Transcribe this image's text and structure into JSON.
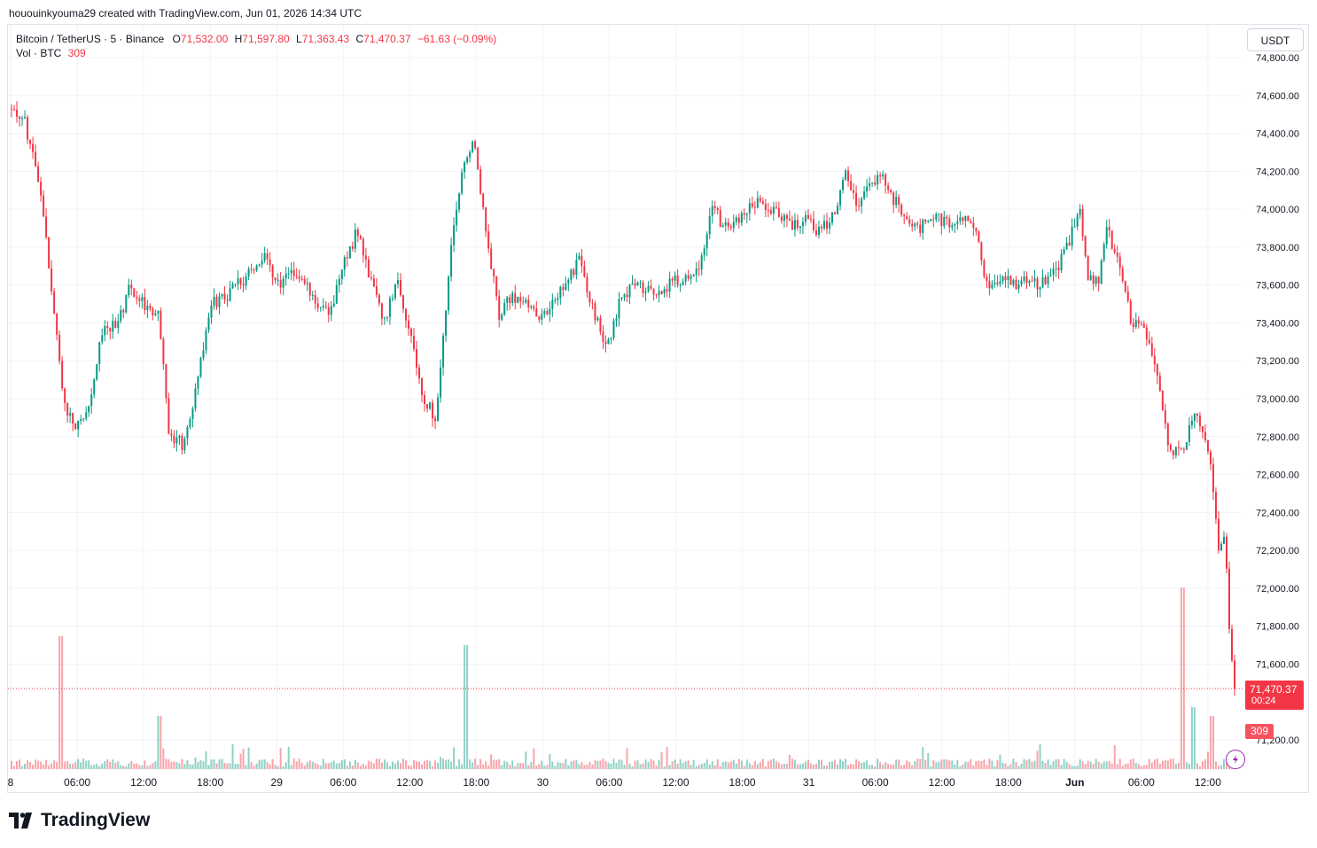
{
  "attribution": "hououinkyouma29 created with TradingView.com, Jun 01, 2026 14:34 UTC",
  "legend": {
    "symbol": "Bitcoin / TetherUS · 5 · Binance",
    "o_label": "O",
    "o_value": "71,532.00",
    "h_label": "H",
    "h_value": "71,597.80",
    "l_label": "L",
    "l_value": "71,363.43",
    "c_label": "C",
    "c_value": "71,470.37",
    "change": "−61.63 (−0.09%)",
    "vol_label": "Vol · BTC",
    "vol_value": "309"
  },
  "currency_button": "USDT",
  "price_tag": {
    "price": "71,470.37",
    "countdown": "00:24"
  },
  "volume_tag": "309",
  "brand": "TradingView",
  "icons": [
    "tradingview-logo-icon",
    "flash-icon"
  ],
  "colors": {
    "up": "#089981",
    "down": "#f23645",
    "grid": "#f0f3fa",
    "text": "#131722"
  },
  "chart_data": {
    "type": "candlestick",
    "timeframe": "5",
    "y_axis": {
      "range": [
        71000,
        74900
      ],
      "ticks": [
        "74,800.00",
        "74,600.00",
        "74,400.00",
        "74,200.00",
        "74,000.00",
        "73,800.00",
        "73,600.00",
        "73,400.00",
        "73,200.00",
        "73,000.00",
        "72,800.00",
        "72,600.00",
        "72,400.00",
        "72,200.00",
        "72,000.00",
        "71,800.00",
        "71,600.00",
        "71,200.00"
      ]
    },
    "x_axis": {
      "ticks": [
        "8",
        "06:00",
        "12:00",
        "18:00",
        "29",
        "06:00",
        "12:00",
        "18:00",
        "30",
        "06:00",
        "12:00",
        "18:00",
        "31",
        "06:00",
        "12:00",
        "18:00",
        "Jun",
        "06:00",
        "12:00"
      ],
      "bold_ticks": [
        "Jun"
      ]
    },
    "price_path": [
      [
        0,
        74530
      ],
      [
        1.2,
        74480
      ],
      [
        2.5,
        74150
      ],
      [
        3.5,
        73550
      ],
      [
        4.5,
        72980
      ],
      [
        5.5,
        72830
      ],
      [
        6.6,
        72990
      ],
      [
        7.7,
        73390
      ],
      [
        8.8,
        73380
      ],
      [
        9.9,
        73600
      ],
      [
        11.0,
        73500
      ],
      [
        12.2,
        73440
      ],
      [
        13.1,
        72800
      ],
      [
        14.2,
        72760
      ],
      [
        15.3,
        73050
      ],
      [
        16.4,
        73500
      ],
      [
        17.5,
        73530
      ],
      [
        18.6,
        73600
      ],
      [
        19.7,
        73660
      ],
      [
        20.8,
        73760
      ],
      [
        21.9,
        73600
      ],
      [
        22.9,
        73660
      ],
      [
        24.0,
        73650
      ],
      [
        25.1,
        73500
      ],
      [
        26.2,
        73450
      ],
      [
        27.3,
        73710
      ],
      [
        28.4,
        73880
      ],
      [
        29.5,
        73620
      ],
      [
        30.6,
        73400
      ],
      [
        31.7,
        73650
      ],
      [
        32.7,
        73350
      ],
      [
        33.8,
        73000
      ],
      [
        34.9,
        72900
      ],
      [
        36.0,
        73750
      ],
      [
        37.0,
        74200
      ],
      [
        37.9,
        74400
      ],
      [
        38.9,
        73900
      ],
      [
        40.0,
        73450
      ],
      [
        41.1,
        73540
      ],
      [
        42.2,
        73520
      ],
      [
        43.2,
        73400
      ],
      [
        44.3,
        73520
      ],
      [
        45.4,
        73600
      ],
      [
        46.6,
        73750
      ],
      [
        47.7,
        73450
      ],
      [
        48.8,
        73280
      ],
      [
        49.8,
        73500
      ],
      [
        50.9,
        73600
      ],
      [
        52.0,
        73580
      ],
      [
        53.0,
        73560
      ],
      [
        54.1,
        73620
      ],
      [
        55.2,
        73640
      ],
      [
        56.3,
        73700
      ],
      [
        57.4,
        74000
      ],
      [
        58.5,
        73900
      ],
      [
        59.6,
        73950
      ],
      [
        60.7,
        74050
      ],
      [
        61.8,
        74000
      ],
      [
        62.8,
        73980
      ],
      [
        63.9,
        73920
      ],
      [
        65.0,
        73950
      ],
      [
        66.1,
        73880
      ],
      [
        67.2,
        73960
      ],
      [
        68.3,
        74200
      ],
      [
        69.2,
        74000
      ],
      [
        70.1,
        74150
      ],
      [
        71.2,
        74180
      ],
      [
        72.2,
        74050
      ],
      [
        73.3,
        73950
      ],
      [
        74.4,
        73900
      ],
      [
        75.5,
        73980
      ],
      [
        76.5,
        73920
      ],
      [
        77.6,
        73950
      ],
      [
        78.7,
        73920
      ],
      [
        79.8,
        73600
      ],
      [
        80.9,
        73650
      ],
      [
        82.0,
        73610
      ],
      [
        83.0,
        73620
      ],
      [
        84.1,
        73600
      ],
      [
        85.2,
        73650
      ],
      [
        86.3,
        73800
      ],
      [
        87.4,
        74000
      ],
      [
        88.0,
        73650
      ],
      [
        88.9,
        73600
      ],
      [
        89.6,
        73900
      ],
      [
        90.5,
        73720
      ],
      [
        91.6,
        73400
      ],
      [
        92.6,
        73380
      ],
      [
        93.7,
        73100
      ],
      [
        94.8,
        72700
      ],
      [
        95.9,
        72750
      ],
      [
        96.7,
        72950
      ],
      [
        97.5,
        72800
      ],
      [
        98.1,
        72650
      ],
      [
        98.7,
        72200
      ],
      [
        99.2,
        72300
      ],
      [
        99.6,
        71750
      ],
      [
        100,
        71470
      ]
    ]
  }
}
